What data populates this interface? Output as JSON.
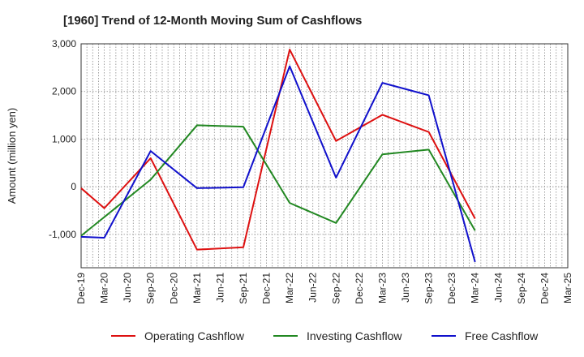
{
  "chart_data": {
    "type": "line",
    "title": "[1960]  Trend of 12-Month Moving Sum of Cashflows",
    "xlabel": "",
    "ylabel": "Amount (million yen)",
    "ylim": [
      -1700,
      3000
    ],
    "yticks": [
      3000,
      2000,
      1000,
      0,
      -1000
    ],
    "ytick_labels": [
      "3,000",
      "2,000",
      "1,000",
      "0",
      "-1,000"
    ],
    "categories": [
      "Dec-19",
      "Mar-20",
      "Jun-20",
      "Sep-20",
      "Dec-20",
      "Mar-21",
      "Jun-21",
      "Sep-21",
      "Dec-21",
      "Mar-22",
      "Jun-22",
      "Sep-22",
      "Dec-22",
      "Mar-23",
      "Jun-23",
      "Sep-23",
      "Dec-23",
      "Mar-24",
      "Jun-24",
      "Sep-24",
      "Dec-24",
      "Mar-25"
    ],
    "grid": true,
    "legend_position": "bottom",
    "series": [
      {
        "name": "Operating Cashflow",
        "color": "#dd1111",
        "points": [
          [
            "Dec-19",
            -30
          ],
          [
            "Mar-20",
            -450
          ],
          [
            "Sep-20",
            600
          ],
          [
            "Mar-21",
            -1320
          ],
          [
            "Sep-21",
            -1270
          ],
          [
            "Mar-22",
            2880
          ],
          [
            "Sep-22",
            960
          ],
          [
            "Mar-23",
            1510
          ],
          [
            "Sep-23",
            1150
          ],
          [
            "Mar-24",
            -670
          ]
        ]
      },
      {
        "name": "Investing Cashflow",
        "color": "#228822",
        "points": [
          [
            "Dec-19",
            -1030
          ],
          [
            "Sep-20",
            150
          ],
          [
            "Mar-21",
            1290
          ],
          [
            "Sep-21",
            1260
          ],
          [
            "Mar-22",
            -340
          ],
          [
            "Sep-22",
            -760
          ],
          [
            "Mar-23",
            680
          ],
          [
            "Sep-23",
            780
          ],
          [
            "Mar-24",
            -920
          ]
        ]
      },
      {
        "name": "Free Cashflow",
        "color": "#1111cc",
        "points": [
          [
            "Dec-19",
            -1050
          ],
          [
            "Mar-20",
            -1070
          ],
          [
            "Sep-20",
            750
          ],
          [
            "Mar-21",
            -30
          ],
          [
            "Sep-21",
            -10
          ],
          [
            "Mar-22",
            2530
          ],
          [
            "Sep-22",
            190
          ],
          [
            "Mar-23",
            2180
          ],
          [
            "Sep-23",
            1920
          ],
          [
            "Mar-24",
            -1580
          ]
        ]
      }
    ]
  }
}
